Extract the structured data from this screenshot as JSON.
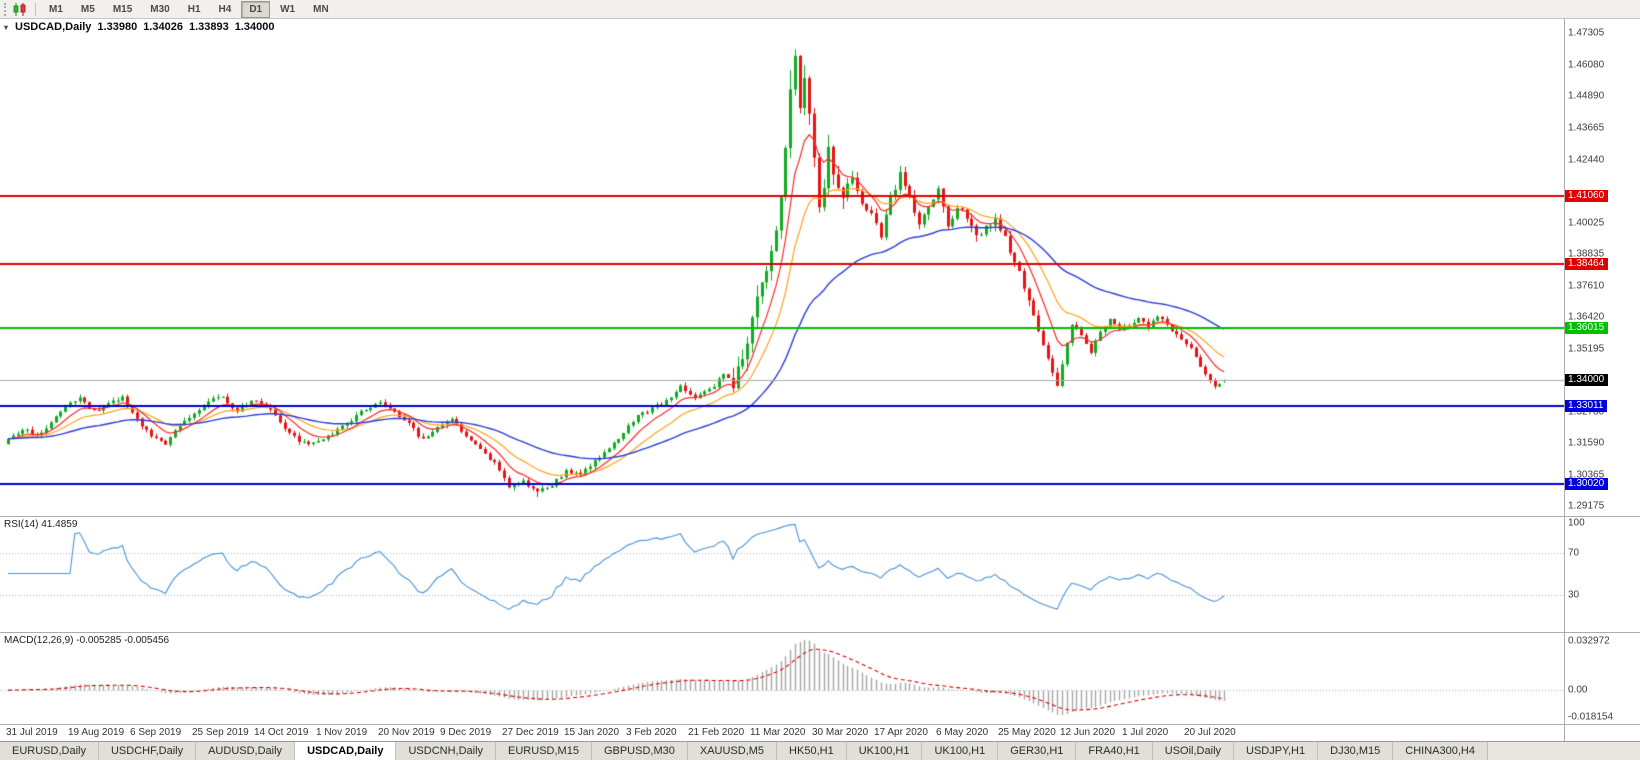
{
  "toolbar": {
    "timeframes": [
      "M1",
      "M5",
      "M15",
      "M30",
      "H1",
      "H4",
      "D1",
      "W1",
      "MN"
    ],
    "active_timeframe": "D1"
  },
  "chart": {
    "title_overlay": {
      "symbol": "USDCAD,Daily",
      "open": "1.33980",
      "high": "1.34026",
      "low": "1.33893",
      "close": "1.34000"
    }
  },
  "price_scale": {
    "ticks": [
      "1.47305",
      "1.46080",
      "1.44890",
      "1.43665",
      "1.42440",
      "1.40025",
      "1.38835",
      "1.37610",
      "1.36420",
      "1.35195",
      "1.32780",
      "1.31590",
      "1.30365",
      "1.29175"
    ],
    "levels": [
      {
        "label": "1.41060",
        "value": 1.4106,
        "color": "#E00000"
      },
      {
        "label": "1.38464",
        "value": 1.38464,
        "color": "#E00000"
      },
      {
        "label": "1.36015",
        "value": 1.36015,
        "color": "#00BE00"
      },
      {
        "label": "1.33011",
        "value": 1.33011,
        "color": "#0000DC"
      },
      {
        "label": "1.30020",
        "value": 1.3002,
        "color": "#0000DC"
      }
    ],
    "current": {
      "label": "1.34000",
      "value": 1.34,
      "color": "#000000"
    }
  },
  "indicators": {
    "rsi": {
      "label": "RSI(14) 41.4859",
      "ticks": [
        "100",
        "70",
        "30"
      ],
      "tick_values": [
        100,
        70,
        30
      ],
      "level_lines": [
        70,
        30
      ],
      "line_color": "#4E93D9"
    },
    "macd": {
      "label": "MACD(12,26,9) -0.005285 -0.005456",
      "tick_top": "0.032972",
      "tick_zero": "0.00",
      "tick_bottom": "-0.018154",
      "histogram_color": "#A6A6A6",
      "signal_color": "#E00000"
    }
  },
  "date_axis": {
    "labels": [
      "31 Jul 2019",
      "19 Aug 2019",
      "6 Sep 2019",
      "25 Sep 2019",
      "14 Oct 2019",
      "1 Nov 2019",
      "20 Nov 2019",
      "9 Dec 2019",
      "27 Dec 2019",
      "15 Jan 2020",
      "3 Feb 2020",
      "21 Feb 2020",
      "11 Mar 2020",
      "30 Mar 2020",
      "17 Apr 2020",
      "6 May 2020",
      "25 May 2020",
      "12 Jun 2020",
      "1 Jul 2020",
      "20 Jul 2020"
    ]
  },
  "tabs": {
    "active_index": 3,
    "items": [
      "EURUSD,Daily",
      "USDCHF,Daily",
      "AUDUSD,Daily",
      "USDCAD,Daily",
      "USDCNH,Daily",
      "EURUSD,M15",
      "GBPUSD,M30",
      "XAUUSD,M5",
      "HK50,H1",
      "UK100,H1",
      "UK100,H1",
      "GER30,H1",
      "FRA40,H1",
      "USOil,Daily",
      "USDJPY,H1",
      "DJ30,M15",
      "CHINA300,H4"
    ],
    "active_label": "USDCAD,Daily"
  },
  "chart_data": {
    "type": "candlestick",
    "symbol": "USDCAD",
    "timeframe": "Daily",
    "bars": 256,
    "bars_per_label": 13,
    "price_range": [
      1.29175,
      1.47305
    ],
    "current_price": 1.34,
    "last_bar": {
      "open": 1.3398,
      "high": 1.34026,
      "low": 1.33893,
      "close": 1.34
    },
    "extremes": {
      "high": 1.4668,
      "high_index": 165,
      "low": 1.2952,
      "low_index": 111
    },
    "hlines": [
      1.4106,
      1.38464,
      1.36015,
      1.33011,
      1.3002
    ],
    "candle_up_color": "#10AC22",
    "candle_down_color": "#E81414",
    "ma": {
      "fast_period": 8,
      "mid_period": 17,
      "slow_period": 45,
      "fast_color": "#FF2A2A",
      "mid_color": "#FFA41E",
      "slow_color": "#2B3FD6"
    },
    "rsi_period": 14,
    "macd_params": {
      "fast": 12,
      "slow": 26,
      "signal": 9
    },
    "close_anchors": [
      [
        0,
        1.317
      ],
      [
        3,
        1.3215
      ],
      [
        6,
        1.3185
      ],
      [
        9,
        1.324
      ],
      [
        12,
        1.33
      ],
      [
        15,
        1.333
      ],
      [
        18,
        1.328
      ],
      [
        21,
        1.331
      ],
      [
        24,
        1.333
      ],
      [
        27,
        1.325
      ],
      [
        30,
        1.318
      ],
      [
        33,
        1.316
      ],
      [
        36,
        1.323
      ],
      [
        39,
        1.327
      ],
      [
        42,
        1.332
      ],
      [
        45,
        1.333
      ],
      [
        48,
        1.328
      ],
      [
        51,
        1.332
      ],
      [
        54,
        1.331
      ],
      [
        57,
        1.324
      ],
      [
        60,
        1.318
      ],
      [
        63,
        1.315
      ],
      [
        66,
        1.317
      ],
      [
        69,
        1.321
      ],
      [
        72,
        1.325
      ],
      [
        75,
        1.329
      ],
      [
        78,
        1.331
      ],
      [
        81,
        1.328
      ],
      [
        84,
        1.323
      ],
      [
        87,
        1.317
      ],
      [
        90,
        1.322
      ],
      [
        93,
        1.325
      ],
      [
        96,
        1.318
      ],
      [
        99,
        1.313
      ],
      [
        102,
        1.308
      ],
      [
        105,
        1.299
      ],
      [
        108,
        1.301
      ],
      [
        111,
        1.297
      ],
      [
        114,
        1.3
      ],
      [
        117,
        1.305
      ],
      [
        120,
        1.304
      ],
      [
        123,
        1.309
      ],
      [
        126,
        1.314
      ],
      [
        129,
        1.32
      ],
      [
        132,
        1.326
      ],
      [
        135,
        1.329
      ],
      [
        138,
        1.332
      ],
      [
        141,
        1.338
      ],
      [
        144,
        1.333
      ],
      [
        147,
        1.336
      ],
      [
        150,
        1.342
      ],
      [
        152,
        1.339
      ],
      [
        154,
        1.348
      ],
      [
        156,
        1.364
      ],
      [
        158,
        1.375
      ],
      [
        160,
        1.389
      ],
      [
        162,
        1.41
      ],
      [
        163,
        1.43
      ],
      [
        164,
        1.45
      ],
      [
        165,
        1.462
      ],
      [
        166,
        1.445
      ],
      [
        167,
        1.456
      ],
      [
        168,
        1.442
      ],
      [
        169,
        1.425
      ],
      [
        170,
        1.408
      ],
      [
        171,
        1.416
      ],
      [
        172,
        1.429
      ],
      [
        173,
        1.42
      ],
      [
        175,
        1.41
      ],
      [
        177,
        1.418
      ],
      [
        179,
        1.408
      ],
      [
        181,
        1.403
      ],
      [
        183,
        1.396
      ],
      [
        185,
        1.409
      ],
      [
        187,
        1.419
      ],
      [
        189,
        1.41
      ],
      [
        191,
        1.399
      ],
      [
        193,
        1.405
      ],
      [
        195,
        1.412
      ],
      [
        197,
        1.399
      ],
      [
        199,
        1.407
      ],
      [
        201,
        1.403
      ],
      [
        203,
        1.395
      ],
      [
        205,
        1.399
      ],
      [
        207,
        1.401
      ],
      [
        209,
        1.394
      ],
      [
        211,
        1.386
      ],
      [
        213,
        1.376
      ],
      [
        215,
        1.365
      ],
      [
        217,
        1.353
      ],
      [
        219,
        1.342
      ],
      [
        220,
        1.338
      ],
      [
        222,
        1.353
      ],
      [
        223,
        1.362
      ],
      [
        225,
        1.357
      ],
      [
        227,
        1.351
      ],
      [
        229,
        1.359
      ],
      [
        231,
        1.363
      ],
      [
        233,
        1.359
      ],
      [
        235,
        1.361
      ],
      [
        237,
        1.364
      ],
      [
        239,
        1.36
      ],
      [
        241,
        1.365
      ],
      [
        243,
        1.361
      ],
      [
        245,
        1.358
      ],
      [
        247,
        1.3545
      ],
      [
        249,
        1.349
      ],
      [
        251,
        1.342
      ],
      [
        253,
        1.337
      ],
      [
        255,
        1.34
      ]
    ]
  }
}
